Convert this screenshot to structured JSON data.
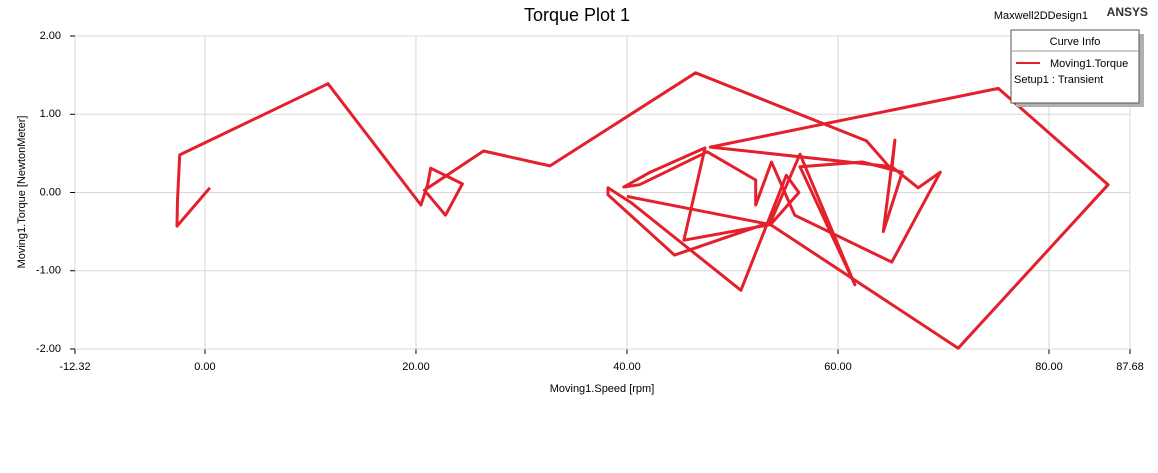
{
  "chart_data": {
    "type": "line",
    "title": "Torque Plot 1",
    "design": "Maxwell2DDesign1",
    "brand": "ANSYS",
    "x_label": "Moving1.Speed [rpm]",
    "y_label": "Moving1.Torque [NewtonMeter]",
    "legend_title": "Curve Info",
    "xlim": [
      -12.32,
      87.68
    ],
    "ylim": [
      -2,
      2
    ],
    "xticks": [
      {
        "value": -12.32,
        "label": "-12.32"
      },
      {
        "value": 0,
        "label": "0.00"
      },
      {
        "value": 20,
        "label": "20.00"
      },
      {
        "value": 40,
        "label": "40.00"
      },
      {
        "value": 60,
        "label": "60.00"
      },
      {
        "value": 80,
        "label": "80.00"
      },
      {
        "value": 87.68,
        "label": "87.68"
      }
    ],
    "yticks": [
      {
        "value": 2,
        "label": "2.00"
      },
      {
        "value": 1,
        "label": "1.00"
      },
      {
        "value": 0,
        "label": "0.00"
      },
      {
        "value": -1,
        "label": "-1.00"
      },
      {
        "value": -2,
        "label": "-2.00"
      }
    ],
    "grid": true,
    "x": [
      0.47,
      -2.65,
      -2.6,
      -2.4,
      11.66,
      20.47,
      21.1,
      21.4,
      24.4,
      22.8,
      20.8,
      26.4,
      32.7,
      46.5,
      62.7,
      65.1,
      65.4,
      64.3,
      66.1,
      62.3,
      56.4,
      61.6,
      56.4,
      53.6,
      44.5,
      38.2,
      38.2,
      40.4,
      50.8,
      55.1,
      56.3,
      53.6,
      45.4,
      47.4,
      42.2,
      39.7,
      41.2,
      47.6,
      52.2,
      52.2,
      53.7,
      55.9,
      65.1,
      69.7,
      67.6,
      65.1,
      47.9,
      75.2,
      85.6,
      71.4,
      53.6,
      40.0
    ],
    "series": [
      {
        "name": "Moving1.Torque",
        "setup": "Setup1 : Transient",
        "color": "#e3202c",
        "values": [
          0.06,
          -0.43,
          -0.1,
          0.48,
          1.39,
          -0.16,
          0.1,
          0.31,
          0.11,
          -0.29,
          0.03,
          0.53,
          0.34,
          1.53,
          0.66,
          0.29,
          0.67,
          -0.5,
          0.26,
          0.39,
          0.33,
          -1.18,
          0.49,
          -0.38,
          -0.8,
          -0.03,
          0.06,
          -0.13,
          -1.25,
          0.22,
          0.0,
          -0.41,
          -0.61,
          0.57,
          0.26,
          0.07,
          0.1,
          0.52,
          0.16,
          -0.16,
          0.39,
          -0.29,
          -0.89,
          0.26,
          0.06,
          0.33,
          0.58,
          1.33,
          0.1,
          -1.99,
          -0.41,
          -0.05
        ]
      }
    ]
  }
}
